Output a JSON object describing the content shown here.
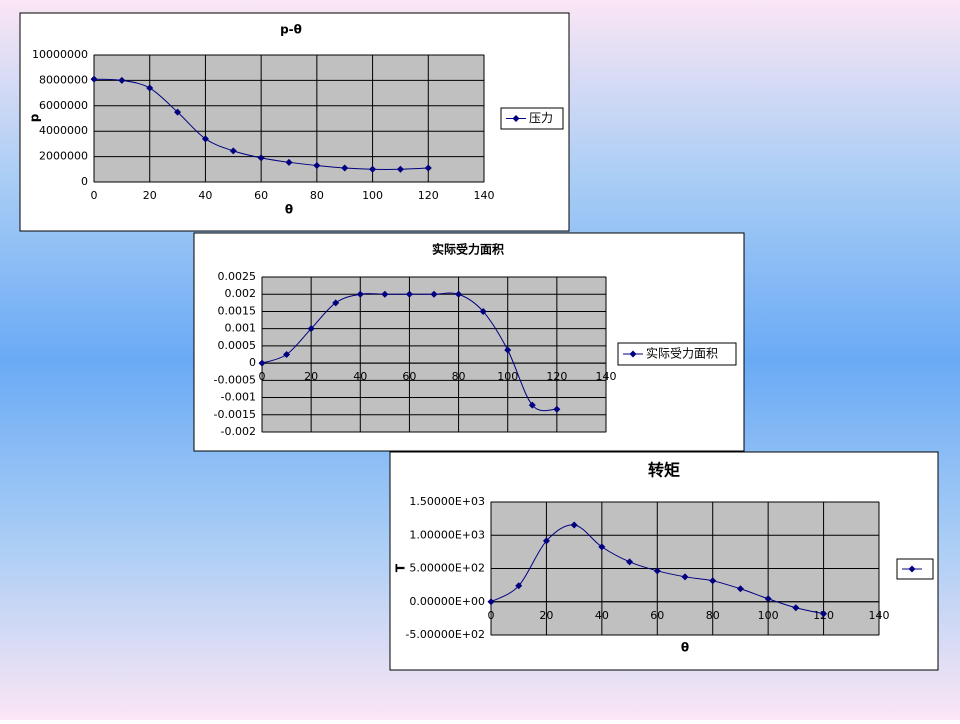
{
  "chart_data": [
    {
      "type": "line",
      "title": "p-θ",
      "xlabel": "θ",
      "ylabel": "p",
      "grid": true,
      "legend": "right",
      "x": [
        0,
        10,
        20,
        30,
        40,
        50,
        60,
        70,
        80,
        90,
        100,
        110,
        120
      ],
      "series": [
        {
          "name": "压力",
          "color": "#000080",
          "values": [
            8100000,
            8000000,
            7400000,
            5500000,
            3400000,
            2450000,
            1900000,
            1550000,
            1300000,
            1100000,
            1000000,
            1000000,
            1100000
          ]
        }
      ],
      "xlim": [
        0,
        140
      ],
      "xticks": [
        0,
        20,
        40,
        60,
        80,
        100,
        120,
        140
      ],
      "ylim": [
        0,
        10000000
      ],
      "yticks": [
        0,
        2000000,
        4000000,
        6000000,
        8000000,
        10000000
      ]
    },
    {
      "type": "line",
      "title": "实际受力面积",
      "grid": true,
      "legend": "right",
      "x": [
        0,
        10,
        20,
        30,
        40,
        50,
        60,
        70,
        80,
        90,
        100,
        110,
        120
      ],
      "series": [
        {
          "name": "实际受力面积",
          "color": "#000080",
          "values": [
            0,
            0.00025,
            0.001,
            0.00175,
            0.002,
            0.002,
            0.002,
            0.002,
            0.002,
            0.0015,
            0.00038,
            -0.00122,
            -0.00134
          ]
        }
      ],
      "xlim": [
        0,
        140
      ],
      "xticks": [
        0,
        20,
        40,
        60,
        80,
        100,
        120,
        140
      ],
      "ylim": [
        -0.002,
        0.0025
      ],
      "yticks": [
        -0.002,
        -0.0015,
        -0.001,
        -0.0005,
        0,
        0.0005,
        0.001,
        0.0015,
        0.002,
        0.0025
      ]
    },
    {
      "type": "line",
      "title": "转矩",
      "xlabel": "θ",
      "ylabel": "T",
      "grid": true,
      "legend": "right",
      "x": [
        0,
        10,
        20,
        30,
        40,
        50,
        60,
        70,
        80,
        90,
        100,
        110,
        120
      ],
      "series": [
        {
          "color": "#000080",
          "values": [
            0,
            240,
            915,
            1155,
            825,
            600,
            465,
            375,
            315,
            195,
            45,
            -90,
            -180
          ]
        }
      ],
      "xlim": [
        0,
        140
      ],
      "xticks": [
        0,
        20,
        40,
        60,
        80,
        100,
        120,
        140
      ],
      "ylim": [
        -500,
        1500
      ],
      "yticks": [
        {
          "value": -500,
          "label": "-5.00000E+02"
        },
        {
          "value": 0,
          "label": "0.00000E+00"
        },
        {
          "value": 500,
          "label": "5.00000E+02"
        },
        {
          "value": 1000,
          "label": "1.00000E+03"
        },
        {
          "value": 1500,
          "label": "1.50000E+03"
        }
      ]
    }
  ]
}
